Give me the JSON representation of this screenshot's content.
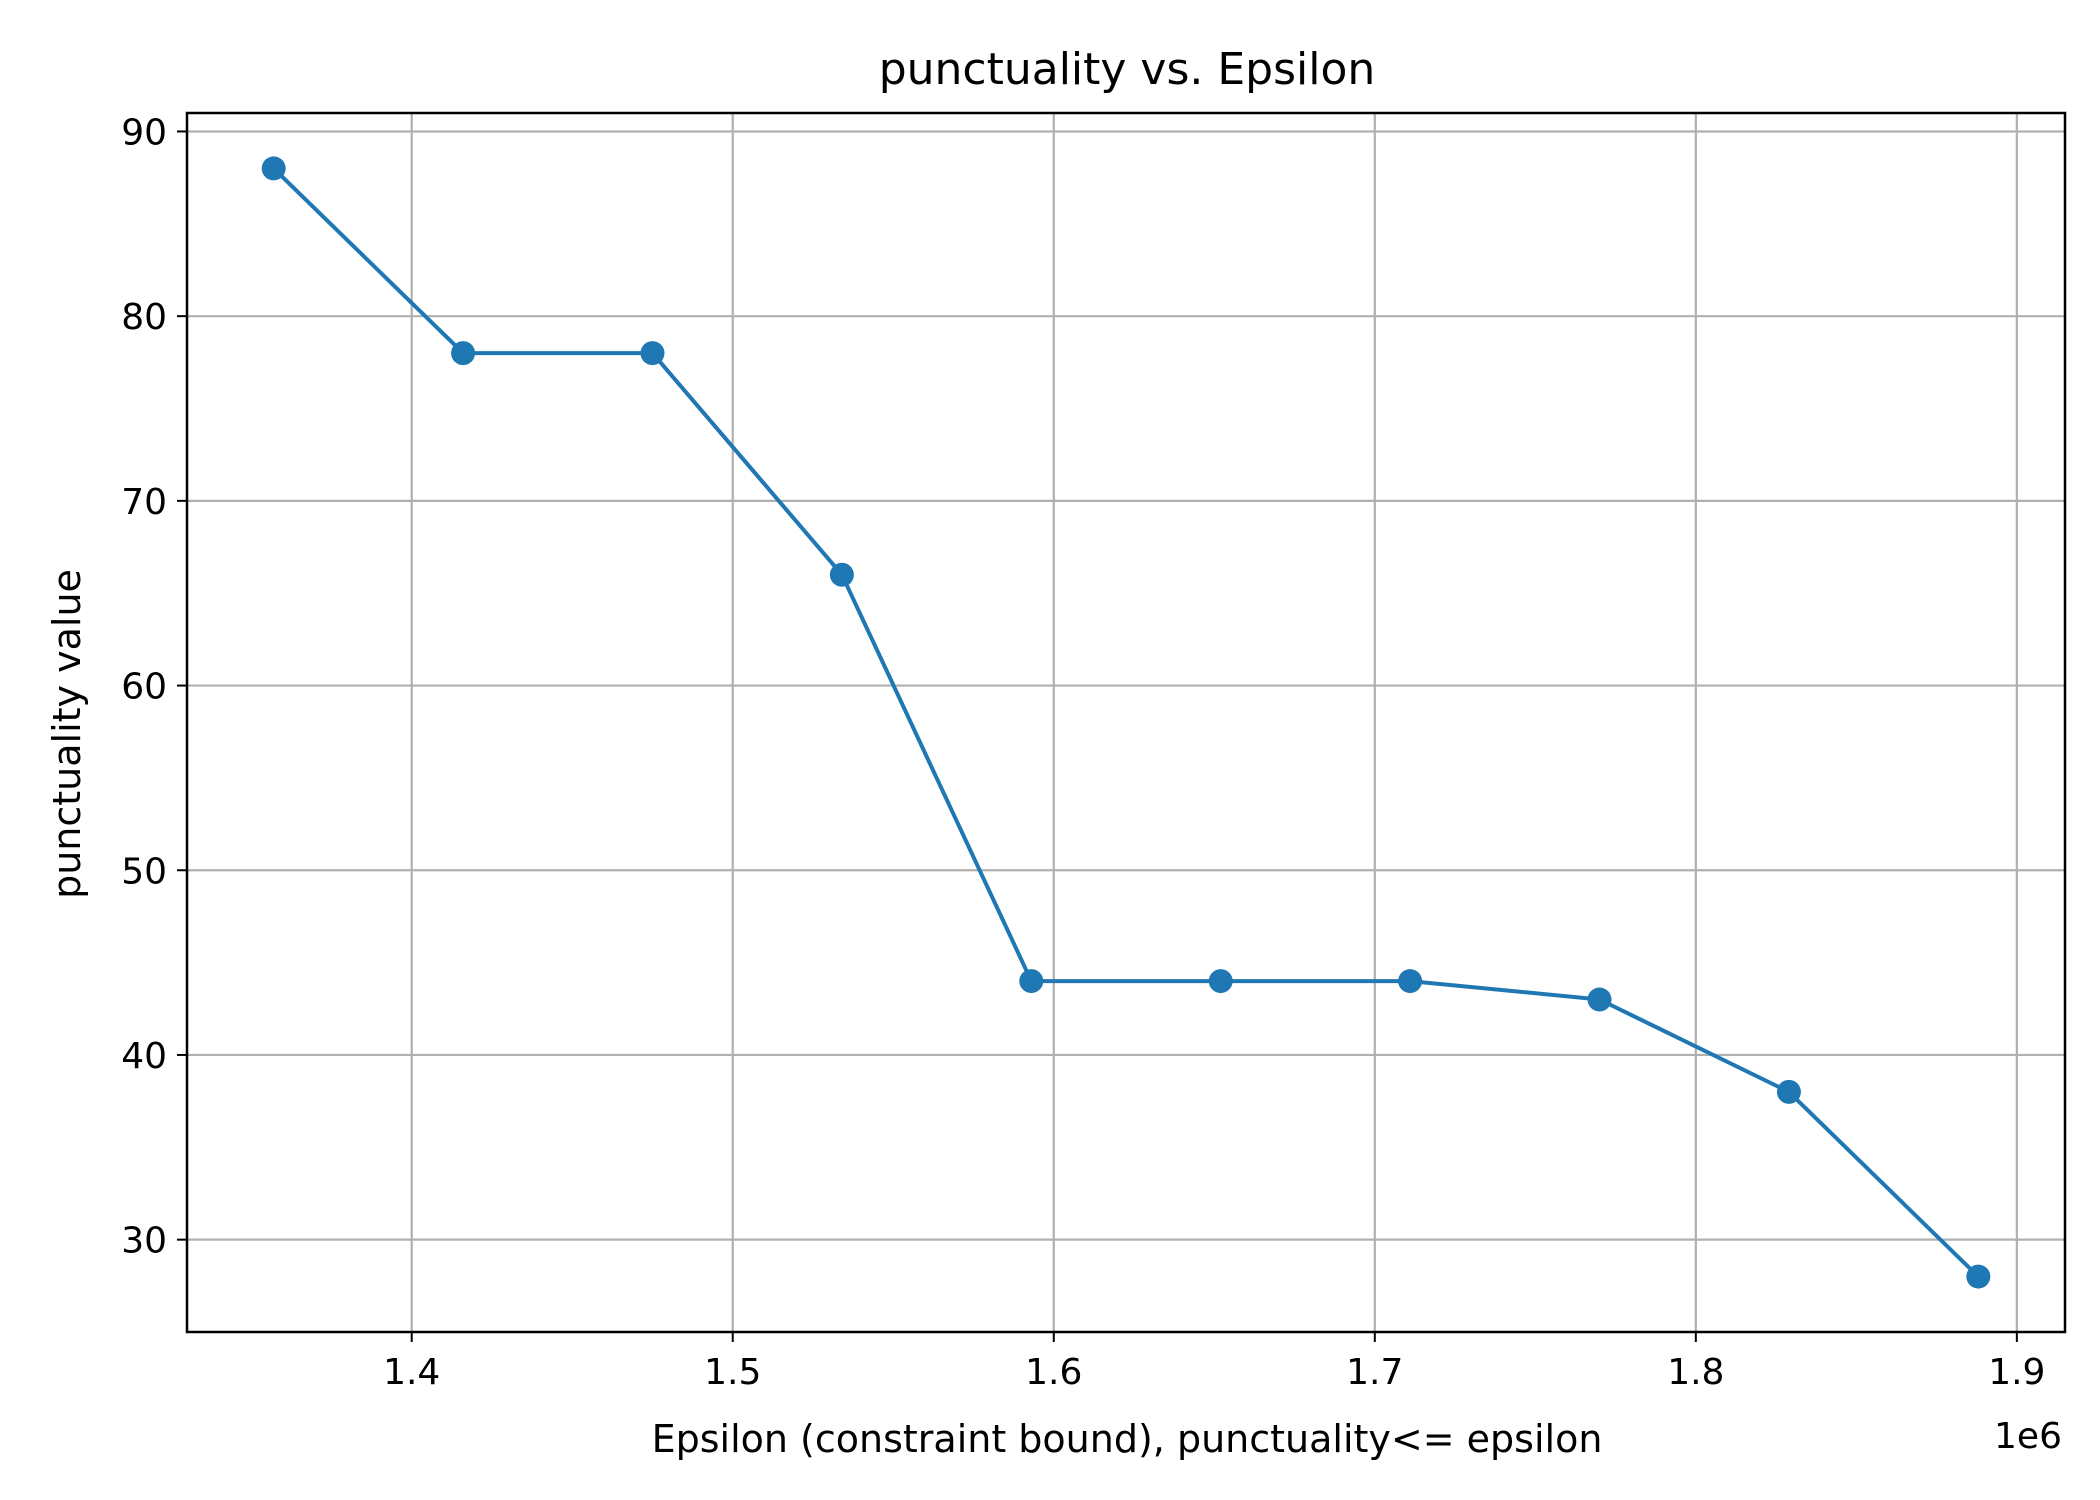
{
  "chart_data": {
    "type": "line",
    "title": "punctuality vs. Epsilon",
    "xlabel": "Epsilon (constraint bound), punctuality<= epsilon",
    "ylabel": "punctuality value",
    "x_offset_label": "1e6",
    "x_scale": 1000000,
    "xlim": [
      1.33,
      1.915
    ],
    "ylim": [
      25,
      91
    ],
    "x_ticks": [
      1.4,
      1.5,
      1.6,
      1.7,
      1.8,
      1.9
    ],
    "x_tick_labels": [
      "1.4",
      "1.5",
      "1.6",
      "1.7",
      "1.8",
      "1.9"
    ],
    "y_ticks": [
      30,
      40,
      50,
      60,
      70,
      80,
      90
    ],
    "y_tick_labels": [
      "30",
      "40",
      "50",
      "60",
      "70",
      "80",
      "90"
    ],
    "grid": true,
    "legend": "none",
    "color": "#1f77b4",
    "series": [
      {
        "x": [
          1.357,
          1.416,
          1.475,
          1.534,
          1.593,
          1.652,
          1.711,
          1.77,
          1.829,
          1.888
        ],
        "y": [
          88,
          78,
          78,
          66,
          44,
          44,
          44,
          43,
          38,
          28
        ]
      }
    ]
  }
}
